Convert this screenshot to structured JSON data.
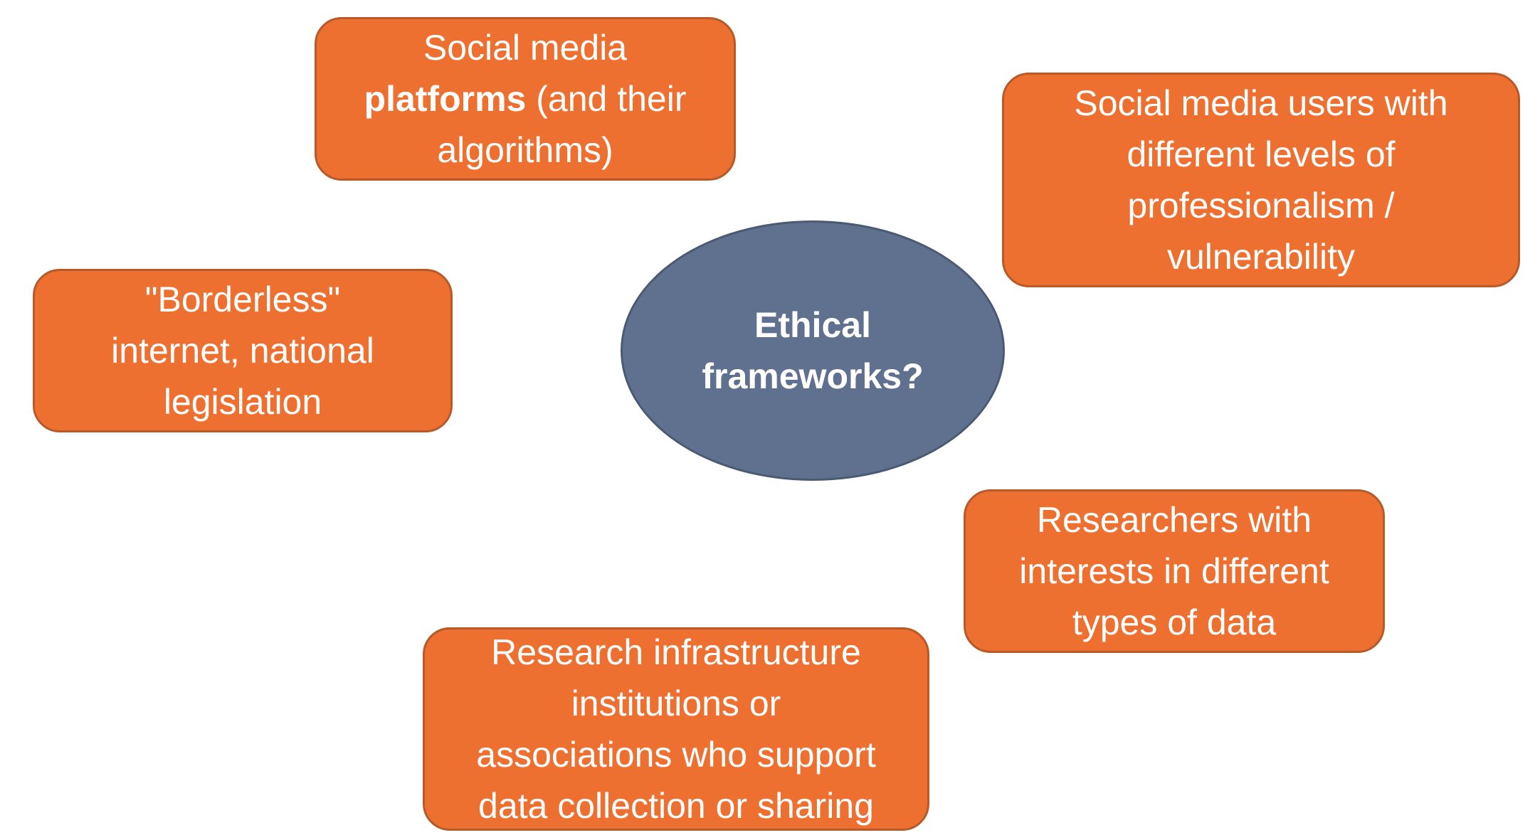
{
  "center": {
    "lines": [
      "Ethical",
      "frameworks?"
    ]
  },
  "platforms": {
    "line1": "Social media",
    "line2_bold": "platforms",
    "line2_rest": " (and their",
    "line3": "algorithms)"
  },
  "users": {
    "lines": [
      "Social media users with",
      "different levels of",
      "professionalism /",
      "vulnerability"
    ]
  },
  "borderless": {
    "lines": [
      "\"Borderless\"",
      "internet, national",
      "legislation"
    ]
  },
  "researchers": {
    "lines": [
      "Researchers with",
      "interests in different",
      "types of data"
    ]
  },
  "infrastructure": {
    "lines": [
      "Research infrastructure",
      "institutions or",
      "associations who support",
      "data collection or sharing"
    ]
  },
  "colors": {
    "box_fill": "#ED7031",
    "box_border": "#B65A2A",
    "center_fill": "#5F718E",
    "text": "#FFFFFF"
  }
}
